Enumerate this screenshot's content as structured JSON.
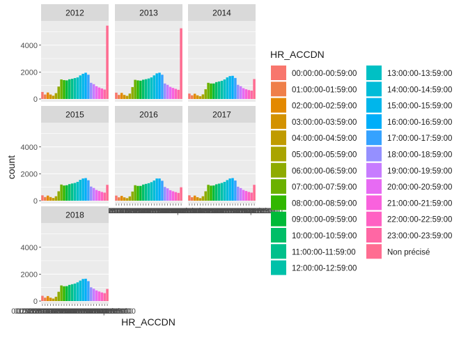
{
  "chart_data": {
    "type": "bar",
    "xlabel": "HR_ACCDN",
    "ylabel": "count",
    "ylim": [
      0,
      5800
    ],
    "y_ticks": [
      "0",
      "2000",
      "4000"
    ],
    "legend_title": "HR_ACCDN",
    "legend_position": "right",
    "grid": true,
    "facet_layout": "3x3, wrap by year",
    "categories": [
      "00:00:00-00:59:00",
      "01:00:00-01:59:00",
      "02:00:00-02:59:00",
      "03:00:00-03:59:00",
      "04:00:00-04:59:00",
      "05:00:00-05:59:00",
      "06:00:00-06:59:00",
      "07:00:00-07:59:00",
      "08:00:00-08:59:00",
      "09:00:00-09:59:00",
      "10:00:00-10:59:00",
      "11:00:00-11:59:00",
      "12:00:00-12:59:00",
      "13:00:00-13:59:00",
      "14:00:00-14:59:00",
      "15:00:00-15:59:00",
      "16:00:00-16:59:00",
      "17:00:00-17:59:00",
      "18:00:00-18:59:00",
      "19:00:00-19:59:00",
      "20:00:00-20:59:00",
      "21:00:00-21:59:00",
      "22:00:00-22:59:00",
      "23:00:00-23:59:00",
      "Non précisé"
    ],
    "colors": [
      "#F8766D",
      "#EF7F49",
      "#E38900",
      "#D39200",
      "#C09B00",
      "#A9A400",
      "#8EAB00",
      "#6BB100",
      "#31B700",
      "#00BA38",
      "#00BE67",
      "#00C08B",
      "#00C1A9",
      "#00C0C4",
      "#00BCD8",
      "#00B6EB",
      "#00AEF9",
      "#35A2FF",
      "#9590FF",
      "#C77CFF",
      "#E76BF3",
      "#F962DD",
      "#FF61C3",
      "#FF67A4",
      "#FF6C91"
    ],
    "series": [
      {
        "name": "2012",
        "values": [
          520,
          330,
          480,
          330,
          240,
          430,
          920,
          1450,
          1400,
          1380,
          1460,
          1500,
          1550,
          1600,
          1750,
          1870,
          1950,
          1800,
          1200,
          1100,
          950,
          850,
          780,
          700,
          5450
        ]
      },
      {
        "name": "2013",
        "values": [
          470,
          300,
          450,
          300,
          230,
          400,
          880,
          1420,
          1380,
          1360,
          1430,
          1470,
          1520,
          1600,
          1750,
          1900,
          1950,
          1800,
          1150,
          1050,
          900,
          820,
          750,
          680,
          5250
        ]
      },
      {
        "name": "2014",
        "values": [
          400,
          270,
          390,
          270,
          200,
          340,
          720,
          1200,
          1150,
          1150,
          1250,
          1300,
          1350,
          1450,
          1600,
          1700,
          1720,
          1560,
          1050,
          950,
          800,
          720,
          660,
          620,
          1480
        ]
      },
      {
        "name": "2015",
        "values": [
          400,
          270,
          380,
          270,
          200,
          330,
          700,
          1200,
          1130,
          1150,
          1230,
          1280,
          1320,
          1400,
          1550,
          1650,
          1680,
          1520,
          1050,
          950,
          800,
          720,
          650,
          600,
          1180
        ]
      },
      {
        "name": "2016",
        "values": [
          380,
          250,
          360,
          250,
          190,
          320,
          680,
          1150,
          1100,
          1100,
          1200,
          1250,
          1300,
          1380,
          1500,
          1650,
          1650,
          1480,
          1020,
          920,
          780,
          700,
          640,
          580,
          1000
        ]
      },
      {
        "name": "2017",
        "values": [
          400,
          260,
          380,
          260,
          190,
          330,
          700,
          1180,
          1120,
          1130,
          1220,
          1270,
          1320,
          1400,
          1530,
          1650,
          1680,
          1500,
          1040,
          940,
          800,
          720,
          650,
          600,
          1180
        ]
      },
      {
        "name": "2018",
        "values": [
          390,
          250,
          370,
          250,
          185,
          320,
          690,
          1160,
          1100,
          1110,
          1200,
          1250,
          1300,
          1390,
          1520,
          1640,
          1660,
          1480,
          1020,
          920,
          790,
          710,
          640,
          590,
          900
        ]
      }
    ]
  }
}
